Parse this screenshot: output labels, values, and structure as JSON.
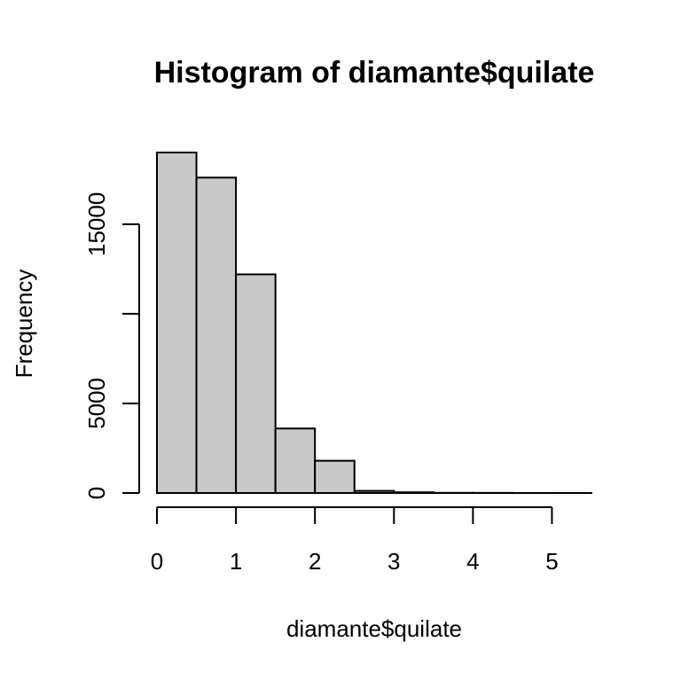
{
  "chart_data": {
    "type": "bar",
    "title": "Histogram of diamante$quilate",
    "xlabel": "diamante$quilate",
    "ylabel": "Frequency",
    "bins": [
      {
        "start": 0.0,
        "end": 0.5,
        "count": 19000
      },
      {
        "start": 0.5,
        "end": 1.0,
        "count": 17600
      },
      {
        "start": 1.0,
        "end": 1.5,
        "count": 12200
      },
      {
        "start": 1.5,
        "end": 2.0,
        "count": 3600
      },
      {
        "start": 2.0,
        "end": 2.5,
        "count": 1800
      },
      {
        "start": 2.5,
        "end": 3.0,
        "count": 120
      },
      {
        "start": 3.0,
        "end": 3.5,
        "count": 40
      },
      {
        "start": 3.5,
        "end": 4.0,
        "count": 10
      },
      {
        "start": 4.0,
        "end": 4.5,
        "count": 8
      },
      {
        "start": 4.5,
        "end": 5.0,
        "count": 2
      },
      {
        "start": 5.0,
        "end": 5.5,
        "count": 1
      }
    ],
    "xlim": [
      0,
      5.5
    ],
    "ylim": [
      0,
      19000
    ],
    "x_ticks": [
      0,
      1,
      2,
      3,
      4,
      5
    ],
    "x_tick_labels": [
      "0",
      "1",
      "2",
      "3",
      "4",
      "5"
    ],
    "y_ticks": [
      0,
      5000,
      10000,
      15000
    ],
    "y_tick_labels": [
      "0",
      "5000",
      "",
      "15000"
    ],
    "bar_fill": "#c9c9c9",
    "bar_stroke": "#000000",
    "grid": false,
    "legend": "none"
  }
}
